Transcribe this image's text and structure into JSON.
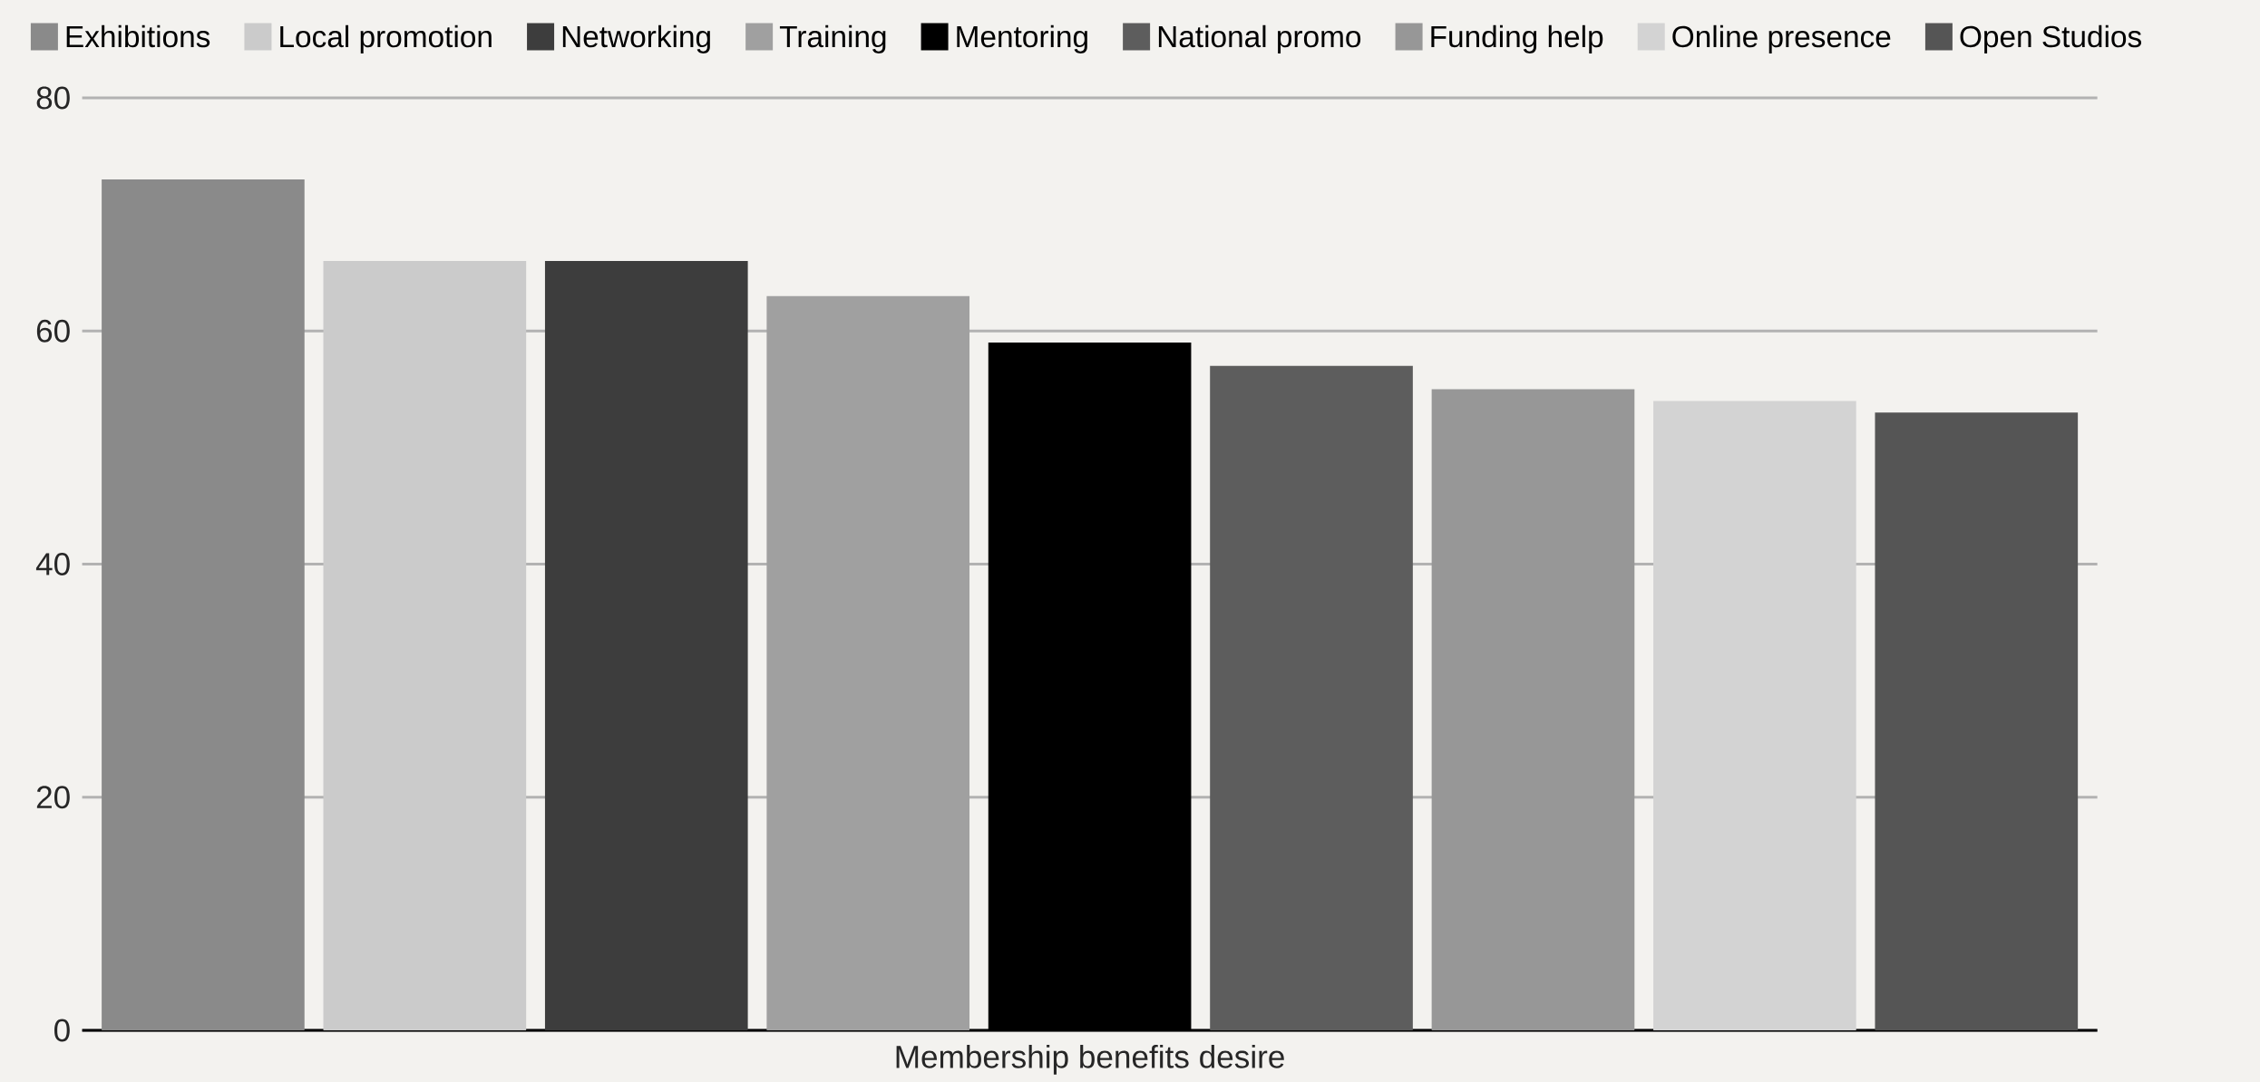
{
  "chart_data": {
    "type": "bar",
    "categories": [
      "Membership benefits desire"
    ],
    "series": [
      {
        "name": "Exhibitions",
        "color": "#8a8a8a",
        "values": [
          73
        ]
      },
      {
        "name": "Local promotion",
        "color": "#cbcbcb",
        "values": [
          66
        ]
      },
      {
        "name": "Networking",
        "color": "#3d3d3d",
        "values": [
          66
        ]
      },
      {
        "name": "Training",
        "color": "#a0a0a0",
        "values": [
          63
        ]
      },
      {
        "name": "Mentoring",
        "color": "#000000",
        "values": [
          59
        ]
      },
      {
        "name": "National promo",
        "color": "#5d5d5d",
        "values": [
          57
        ]
      },
      {
        "name": "Funding help",
        "color": "#979797",
        "values": [
          55
        ]
      },
      {
        "name": "Online presence",
        "color": "#d3d3d3",
        "values": [
          54
        ]
      },
      {
        "name": "Open Studios",
        "color": "#555555",
        "values": [
          53
        ]
      }
    ],
    "ylim": [
      0,
      80
    ],
    "yticks": [
      0,
      20,
      40,
      60,
      80
    ],
    "grid": "y",
    "legend": "top"
  }
}
